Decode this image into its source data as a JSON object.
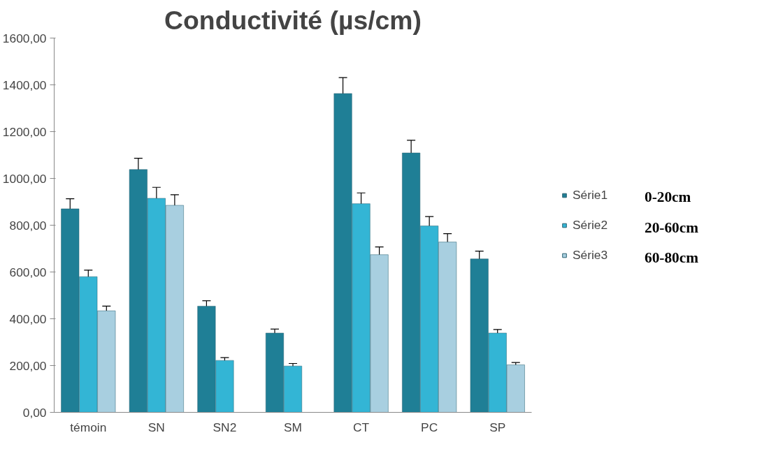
{
  "chart_data": {
    "type": "bar",
    "title": "Conductivité (µs/cm)",
    "categories": [
      "témoin",
      "SN",
      "SN2",
      "SM",
      "CT",
      "PC",
      "SP"
    ],
    "series": [
      {
        "name": "Série1",
        "color": "#1f7f96",
        "values": [
          870,
          1038,
          454,
          339,
          1363,
          1109,
          656
        ],
        "errors": [
          43,
          48,
          23,
          17,
          68,
          54,
          33
        ]
      },
      {
        "name": "Série2",
        "color": "#33b5d5",
        "values": [
          580,
          915,
          222,
          198,
          892,
          797,
          339
        ],
        "errors": [
          28,
          47,
          12,
          11,
          46,
          40,
          15
        ]
      },
      {
        "name": "Série3",
        "color": "#a8cfe0",
        "values": [
          434,
          885,
          null,
          null,
          674,
          728,
          203
        ],
        "errors": [
          20,
          45,
          null,
          null,
          33,
          36,
          10
        ]
      }
    ],
    "annotations": [
      "0-20cm",
      "20-60cm",
      "60-80cm"
    ],
    "ylim": [
      0,
      1600
    ],
    "yticks": [
      {
        "value": 0,
        "label": "0,00"
      },
      {
        "value": 200,
        "label": "200,00"
      },
      {
        "value": 400,
        "label": "400,00"
      },
      {
        "value": 600,
        "label": "600,00"
      },
      {
        "value": 800,
        "label": "800,00"
      },
      {
        "value": 1000,
        "label": "1000,00"
      },
      {
        "value": 1200,
        "label": "1200,00"
      },
      {
        "value": 1400,
        "label": "1400,00"
      },
      {
        "value": 1600,
        "label": "1600,00"
      }
    ],
    "grid": false,
    "legend": "right"
  }
}
